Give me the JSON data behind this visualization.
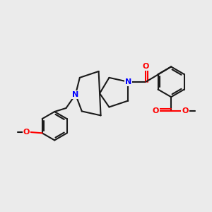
{
  "bg_color": "#ebebeb",
  "bond_color": "#1a1a1a",
  "N_color": "#0000ff",
  "O_color": "#ff0000",
  "line_width": 1.5,
  "figsize": [
    3.0,
    3.0
  ],
  "dpi": 100,
  "xlim": [
    0,
    10
  ],
  "ylim": [
    0,
    10
  ]
}
